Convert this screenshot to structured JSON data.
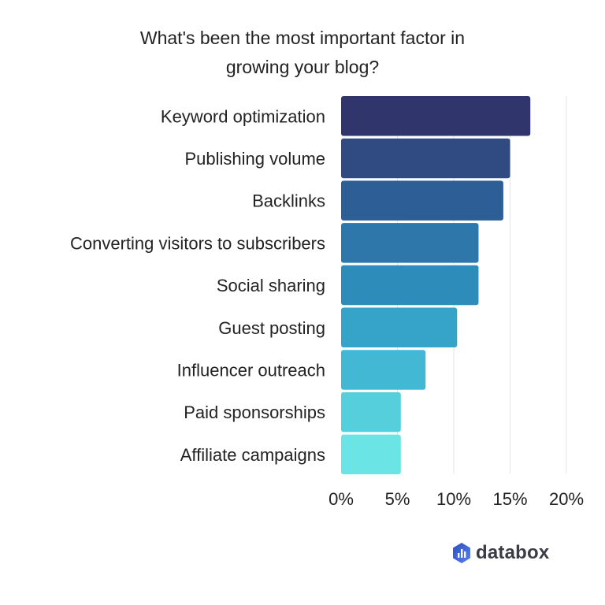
{
  "chart_data": {
    "type": "bar",
    "orientation": "horizontal",
    "title": "What's been the most important factor in growing your blog?",
    "title_lines": [
      "What's been the most important factor in",
      "growing your blog?"
    ],
    "categories": [
      "Keyword optimization",
      "Publishing volume",
      "Backlinks",
      "Converting visitors to subscribers",
      "Social sharing",
      "Guest posting",
      "Influencer outreach",
      "Paid sponsorships",
      "Affiliate campaigns"
    ],
    "values": [
      16.8,
      15.0,
      14.4,
      12.2,
      12.2,
      10.3,
      7.5,
      5.3,
      5.3
    ],
    "colors": [
      "#30356c",
      "#304a82",
      "#2d5f96",
      "#2d77aa",
      "#2d8cb9",
      "#36a3c9",
      "#42b8d5",
      "#55cfdc",
      "#6be4e6"
    ],
    "xlim": [
      0,
      20
    ],
    "xticks": [
      0,
      5,
      10,
      15,
      20
    ],
    "xtick_labels": [
      "0%",
      "5%",
      "10%",
      "15%",
      "20%"
    ],
    "xlabel": "",
    "ylabel": "",
    "grid": "vertical"
  },
  "branding": {
    "logo_text": "databox",
    "logo_color": "#3a5fd0"
  }
}
